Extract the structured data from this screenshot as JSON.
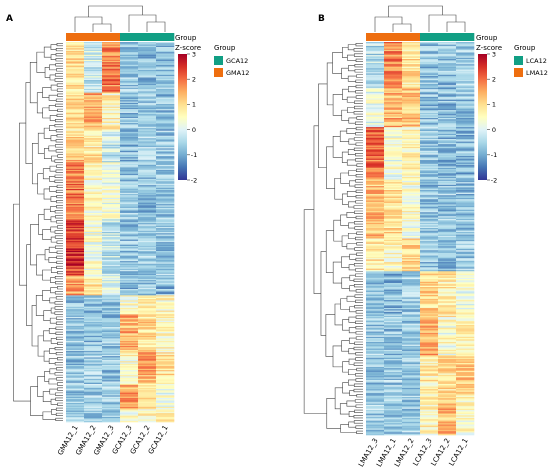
{
  "color_scale": [
    "#313695",
    "#4575b4",
    "#74add1",
    "#abd9e9",
    "#e0f3f8",
    "#ffffbf",
    "#fee090",
    "#fdae61",
    "#f46d43",
    "#d73027",
    "#a50026"
  ],
  "group_colors": {
    "GCA12": "#119f84",
    "GMA12": "#ee6e0f",
    "LCA12": "#119f84",
    "LMA12": "#ee6e0f"
  },
  "panels": [
    {
      "letter": "A",
      "group_bar_label": "Group",
      "zscore_title": "Z-score",
      "zscore_ticks": [
        "3",
        "2",
        "1",
        "0",
        "-1",
        "-2"
      ],
      "legend_title": "Group",
      "legend_items": [
        {
          "label": "GCA12",
          "color": "#119f84"
        },
        {
          "label": "GMA12",
          "color": "#ee6e0f"
        }
      ]
    },
    {
      "letter": "B",
      "group_bar_label": "Group",
      "zscore_title": "Z-score",
      "zscore_ticks": [
        "3",
        "2",
        "1",
        "0",
        "-1",
        "-2"
      ],
      "legend_title": "Group",
      "legend_items": [
        {
          "label": "LCA12",
          "color": "#119f84"
        },
        {
          "label": "LMA12",
          "color": "#ee6e0f"
        }
      ]
    }
  ],
  "chart_data": [
    {
      "type": "heatmap",
      "title": "",
      "columns": [
        "GMA12_1",
        "GMA12_2",
        "GMA12_3",
        "GCA12_3",
        "GCA12_2",
        "GCA12_1"
      ],
      "column_groups": [
        "GMA12",
        "GMA12",
        "GMA12",
        "GCA12",
        "GCA12",
        "GCA12"
      ],
      "color_range": [
        -2,
        3
      ],
      "row_blocks": [
        {
          "rows": 40,
          "values": [
            1.0,
            -0.2,
            1.8,
            -0.6,
            -0.8,
            -0.7
          ]
        },
        {
          "rows": 30,
          "values": [
            0.9,
            1.4,
            0.6,
            -0.7,
            -0.7,
            -0.8
          ]
        },
        {
          "rows": 25,
          "values": [
            1.2,
            0.8,
            -0.2,
            -0.8,
            -0.6,
            -0.7
          ]
        },
        {
          "rows": 45,
          "values": [
            1.9,
            0.5,
            0.2,
            -0.7,
            -0.8,
            -0.7
          ]
        },
        {
          "rows": 45,
          "values": [
            2.4,
            0.3,
            -0.3,
            -0.7,
            -0.6,
            -0.7
          ]
        },
        {
          "rows": 15,
          "values": [
            1.5,
            0.9,
            0.1,
            -0.8,
            -0.7,
            -0.8
          ]
        },
        {
          "rows": 15,
          "values": [
            -0.7,
            -0.7,
            -0.6,
            0.4,
            0.8,
            0.5
          ]
        },
        {
          "rows": 30,
          "values": [
            -0.7,
            -0.7,
            -0.7,
            1.4,
            1.0,
            0.6
          ]
        },
        {
          "rows": 25,
          "values": [
            -0.7,
            -0.6,
            -0.7,
            0.5,
            1.5,
            0.9
          ]
        },
        {
          "rows": 20,
          "values": [
            -0.7,
            -0.6,
            -0.6,
            1.6,
            0.7,
            0.3
          ]
        },
        {
          "rows": 10,
          "values": [
            -0.6,
            -0.6,
            -0.5,
            0.3,
            0.6,
            0.9
          ]
        }
      ]
    },
    {
      "type": "heatmap",
      "title": "",
      "columns": [
        "LMA12_3",
        "LMA12_1",
        "LMA12_2",
        "LCA12_3",
        "LCA12_2",
        "LCA12_1"
      ],
      "column_groups": [
        "LMA12",
        "LMA12",
        "LMA12",
        "LCA12",
        "LCA12",
        "LCA12"
      ],
      "color_range": [
        -2,
        3
      ],
      "row_blocks": [
        {
          "rows": 35,
          "values": [
            -0.4,
            1.8,
            0.9,
            -0.7,
            -0.7,
            -0.6
          ]
        },
        {
          "rows": 30,
          "values": [
            0.2,
            1.4,
            1.2,
            -0.7,
            -0.8,
            -0.7
          ]
        },
        {
          "rows": 40,
          "values": [
            2.0,
            0.3,
            0.6,
            -0.6,
            -0.8,
            -0.8
          ]
        },
        {
          "rows": 45,
          "values": [
            1.3,
            0.9,
            0.4,
            -0.7,
            -0.7,
            -0.7
          ]
        },
        {
          "rows": 25,
          "values": [
            0.9,
            0.6,
            1.1,
            -0.7,
            -0.8,
            -0.6
          ]
        },
        {
          "rows": 35,
          "values": [
            -0.7,
            -0.8,
            -0.6,
            1.0,
            0.8,
            0.3
          ]
        },
        {
          "rows": 30,
          "values": [
            -0.6,
            -0.7,
            -0.7,
            1.5,
            0.4,
            0.6
          ]
        },
        {
          "rows": 30,
          "values": [
            -0.7,
            -0.6,
            -0.6,
            0.7,
            0.9,
            1.2
          ]
        },
        {
          "rows": 30,
          "values": [
            -0.6,
            -0.7,
            -0.6,
            0.6,
            1.3,
            0.5
          ]
        }
      ]
    }
  ]
}
